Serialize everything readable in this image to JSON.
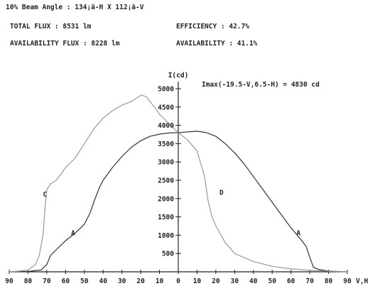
{
  "header": {
    "beam_angle": "10% Beam Angle : 134¡ã-H X 112¡ã-V",
    "total_flux": "TOTAL FLUX : 8531 lm",
    "efficiency": "EFFICIENCY : 42.7%",
    "availability_flux": "AVAILABILITY FLUX : 8228 lm",
    "availability": "AVAILABILITY : 41.1%"
  },
  "chart_data": {
    "type": "line",
    "ylabel": "I(cd)",
    "xlabel": "V,H",
    "annotation": "Imax(-19.5-V,6.5-H) = 4830 cd",
    "ylim": [
      0,
      5000
    ],
    "yticks": [
      500,
      1000,
      1500,
      2000,
      2500,
      3000,
      3500,
      4000,
      4500,
      5000
    ],
    "xlim": [
      -90,
      90
    ],
    "xticks": [
      -90,
      -80,
      -70,
      -60,
      -50,
      -40,
      -30,
      -20,
      -10,
      0,
      10,
      20,
      30,
      40,
      50,
      60,
      70,
      80,
      90
    ],
    "xticklabels": [
      "90",
      "80",
      "70",
      "60",
      "50",
      "40",
      "30",
      "20",
      "10",
      "0",
      "10",
      "20",
      "30",
      "40",
      "50",
      "60",
      "70",
      "80",
      "90"
    ],
    "grid": false,
    "series": [
      {
        "name": "A",
        "color": "#333333",
        "label_at": [
          [
            -56,
            1000
          ],
          [
            64,
            1000
          ]
        ],
        "x": [
          -90,
          -80,
          -73,
          -70,
          -68,
          -65,
          -60,
          -55,
          -50,
          -47,
          -45,
          -42,
          -40,
          -35,
          -30,
          -25,
          -20,
          -15,
          -10,
          -5,
          0,
          5,
          10,
          15,
          20,
          25,
          30,
          35,
          40,
          45,
          50,
          55,
          60,
          65,
          68,
          70,
          72,
          75,
          80,
          90
        ],
        "y": [
          0,
          10,
          50,
          200,
          450,
          600,
          850,
          1050,
          1300,
          1600,
          1900,
          2300,
          2500,
          2850,
          3150,
          3400,
          3580,
          3700,
          3760,
          3790,
          3800,
          3820,
          3840,
          3800,
          3700,
          3500,
          3250,
          2950,
          2600,
          2250,
          1900,
          1550,
          1200,
          900,
          700,
          400,
          120,
          60,
          20,
          0
        ]
      },
      {
        "name": "C",
        "color": "#9a9a9a",
        "label_at": [
          [
            -71,
            2050
          ]
        ],
        "x": [
          -90,
          -85,
          -80,
          -76,
          -74,
          -72,
          -71,
          -70,
          -68,
          -65,
          -62,
          -60,
          -55,
          -50,
          -45,
          -40,
          -35,
          -30,
          -25,
          -22,
          -19.5,
          -17,
          -15,
          -12,
          -10,
          -5,
          0,
          5,
          10,
          14,
          16,
          18,
          20,
          25,
          30,
          40,
          50,
          60,
          70,
          80,
          90
        ],
        "y": [
          0,
          20,
          50,
          200,
          450,
          1000,
          1700,
          2250,
          2400,
          2500,
          2700,
          2850,
          3100,
          3500,
          3900,
          4200,
          4400,
          4550,
          4650,
          4750,
          4830,
          4780,
          4650,
          4450,
          4300,
          4050,
          3800,
          3600,
          3300,
          2600,
          1900,
          1500,
          1250,
          800,
          500,
          280,
          150,
          80,
          40,
          15,
          0
        ]
      },
      {
        "name": "D",
        "label_at": [
          [
            23,
            2100
          ]
        ]
      }
    ]
  }
}
